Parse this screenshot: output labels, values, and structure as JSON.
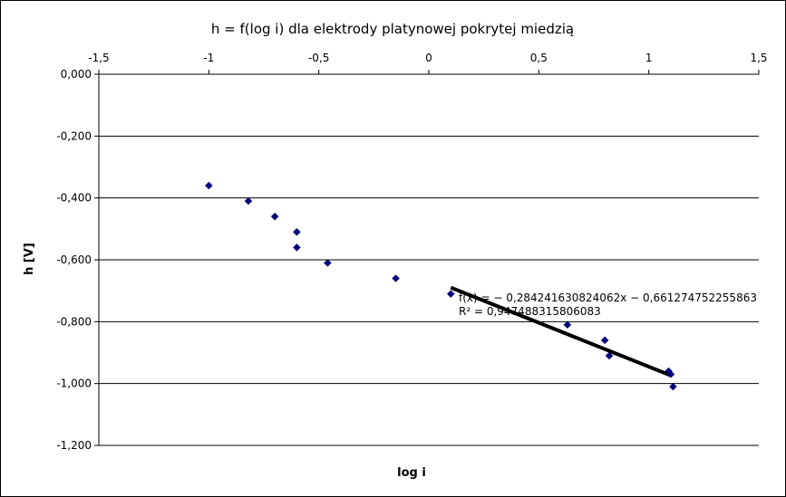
{
  "chart_data": {
    "type": "scatter",
    "title": "h = f(log i) dla elektrody platynowej pokrytej miedzią",
    "xlabel": "log i",
    "ylabel": "h [V]",
    "xlim": [
      -1.5,
      1.5
    ],
    "ylim": [
      -1.2,
      0.0
    ],
    "x_ticks": [
      -1.5,
      -1,
      -0.5,
      0,
      0.5,
      1,
      1.5
    ],
    "x_tick_labels": [
      "-1,5",
      "-1",
      "-0,5",
      "0",
      "0,5",
      "1",
      "1,5"
    ],
    "y_ticks": [
      0.0,
      -0.2,
      -0.4,
      -0.6,
      -0.8,
      -1.0,
      -1.2
    ],
    "y_tick_labels": [
      "0,000",
      "-0,200",
      "-0,400",
      "-0,600",
      "-0,800",
      "-1,000",
      "-1,200"
    ],
    "x_axis_position": "top",
    "grid": {
      "horizontal": true,
      "vertical": false
    },
    "legend": "none",
    "series": [
      {
        "marker": "diamond",
        "color": "#000080",
        "points": [
          {
            "x": -1.0,
            "y": -0.36
          },
          {
            "x": -0.82,
            "y": -0.41
          },
          {
            "x": -0.7,
            "y": -0.46
          },
          {
            "x": -0.6,
            "y": -0.51
          },
          {
            "x": -0.6,
            "y": -0.56
          },
          {
            "x": -0.46,
            "y": -0.61
          },
          {
            "x": -0.15,
            "y": -0.66
          },
          {
            "x": 0.1,
            "y": -0.71
          },
          {
            "x": 0.63,
            "y": -0.81
          },
          {
            "x": 0.8,
            "y": -0.86
          },
          {
            "x": 0.82,
            "y": -0.91
          },
          {
            "x": 1.09,
            "y": -0.96
          },
          {
            "x": 1.1,
            "y": -0.97
          },
          {
            "x": 1.11,
            "y": -1.01
          }
        ]
      }
    ],
    "trendline": {
      "x_range": [
        0.1,
        1.1
      ],
      "slope": -0.284241630824062,
      "intercept": -0.661274752255863,
      "color": "#000000",
      "equation_label": "f(x) = − 0,284241630824062x − 0,661274752255863",
      "r2_label": "R² = 0,947488315806083"
    }
  }
}
